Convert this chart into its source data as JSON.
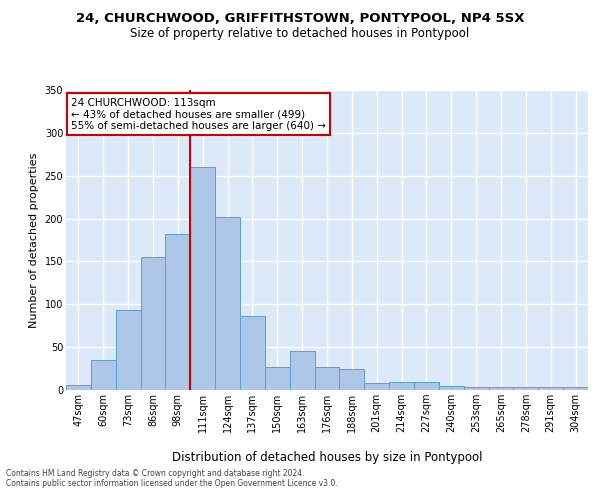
{
  "title1": "24, CHURCHWOOD, GRIFFITHSTOWN, PONTYPOOL, NP4 5SX",
  "title2": "Size of property relative to detached houses in Pontypool",
  "xlabel": "Distribution of detached houses by size in Pontypool",
  "ylabel": "Number of detached properties",
  "categories": [
    "47sqm",
    "60sqm",
    "73sqm",
    "86sqm",
    "98sqm",
    "111sqm",
    "124sqm",
    "137sqm",
    "150sqm",
    "163sqm",
    "176sqm",
    "188sqm",
    "201sqm",
    "214sqm",
    "227sqm",
    "240sqm",
    "253sqm",
    "265sqm",
    "278sqm",
    "291sqm",
    "304sqm"
  ],
  "values": [
    6,
    35,
    93,
    155,
    182,
    260,
    202,
    86,
    27,
    45,
    27,
    24,
    8,
    9,
    9,
    5,
    3,
    4,
    4,
    3,
    3
  ],
  "bar_color": "#aec6e8",
  "bar_edge_color": "#5a9fd4",
  "background_color": "#dce9f8",
  "grid_color": "#ffffff",
  "vline_bin_index": 5,
  "vline_color": "#cc0000",
  "annotation_text": "24 CHURCHWOOD: 113sqm\n← 43% of detached houses are smaller (499)\n55% of semi-detached houses are larger (640) →",
  "annotation_box_facecolor": "#ffffff",
  "annotation_box_edgecolor": "#cc0000",
  "ylim": [
    0,
    350
  ],
  "yticks": [
    0,
    50,
    100,
    150,
    200,
    250,
    300,
    350
  ],
  "footer1": "Contains HM Land Registry data © Crown copyright and database right 2024.",
  "footer2": "Contains public sector information licensed under the Open Government Licence v3.0.",
  "title1_fontsize": 9.5,
  "title2_fontsize": 8.5,
  "ylabel_fontsize": 8,
  "xlabel_fontsize": 8.5,
  "tick_fontsize": 7,
  "annotation_fontsize": 7.5,
  "footer_fontsize": 5.5
}
